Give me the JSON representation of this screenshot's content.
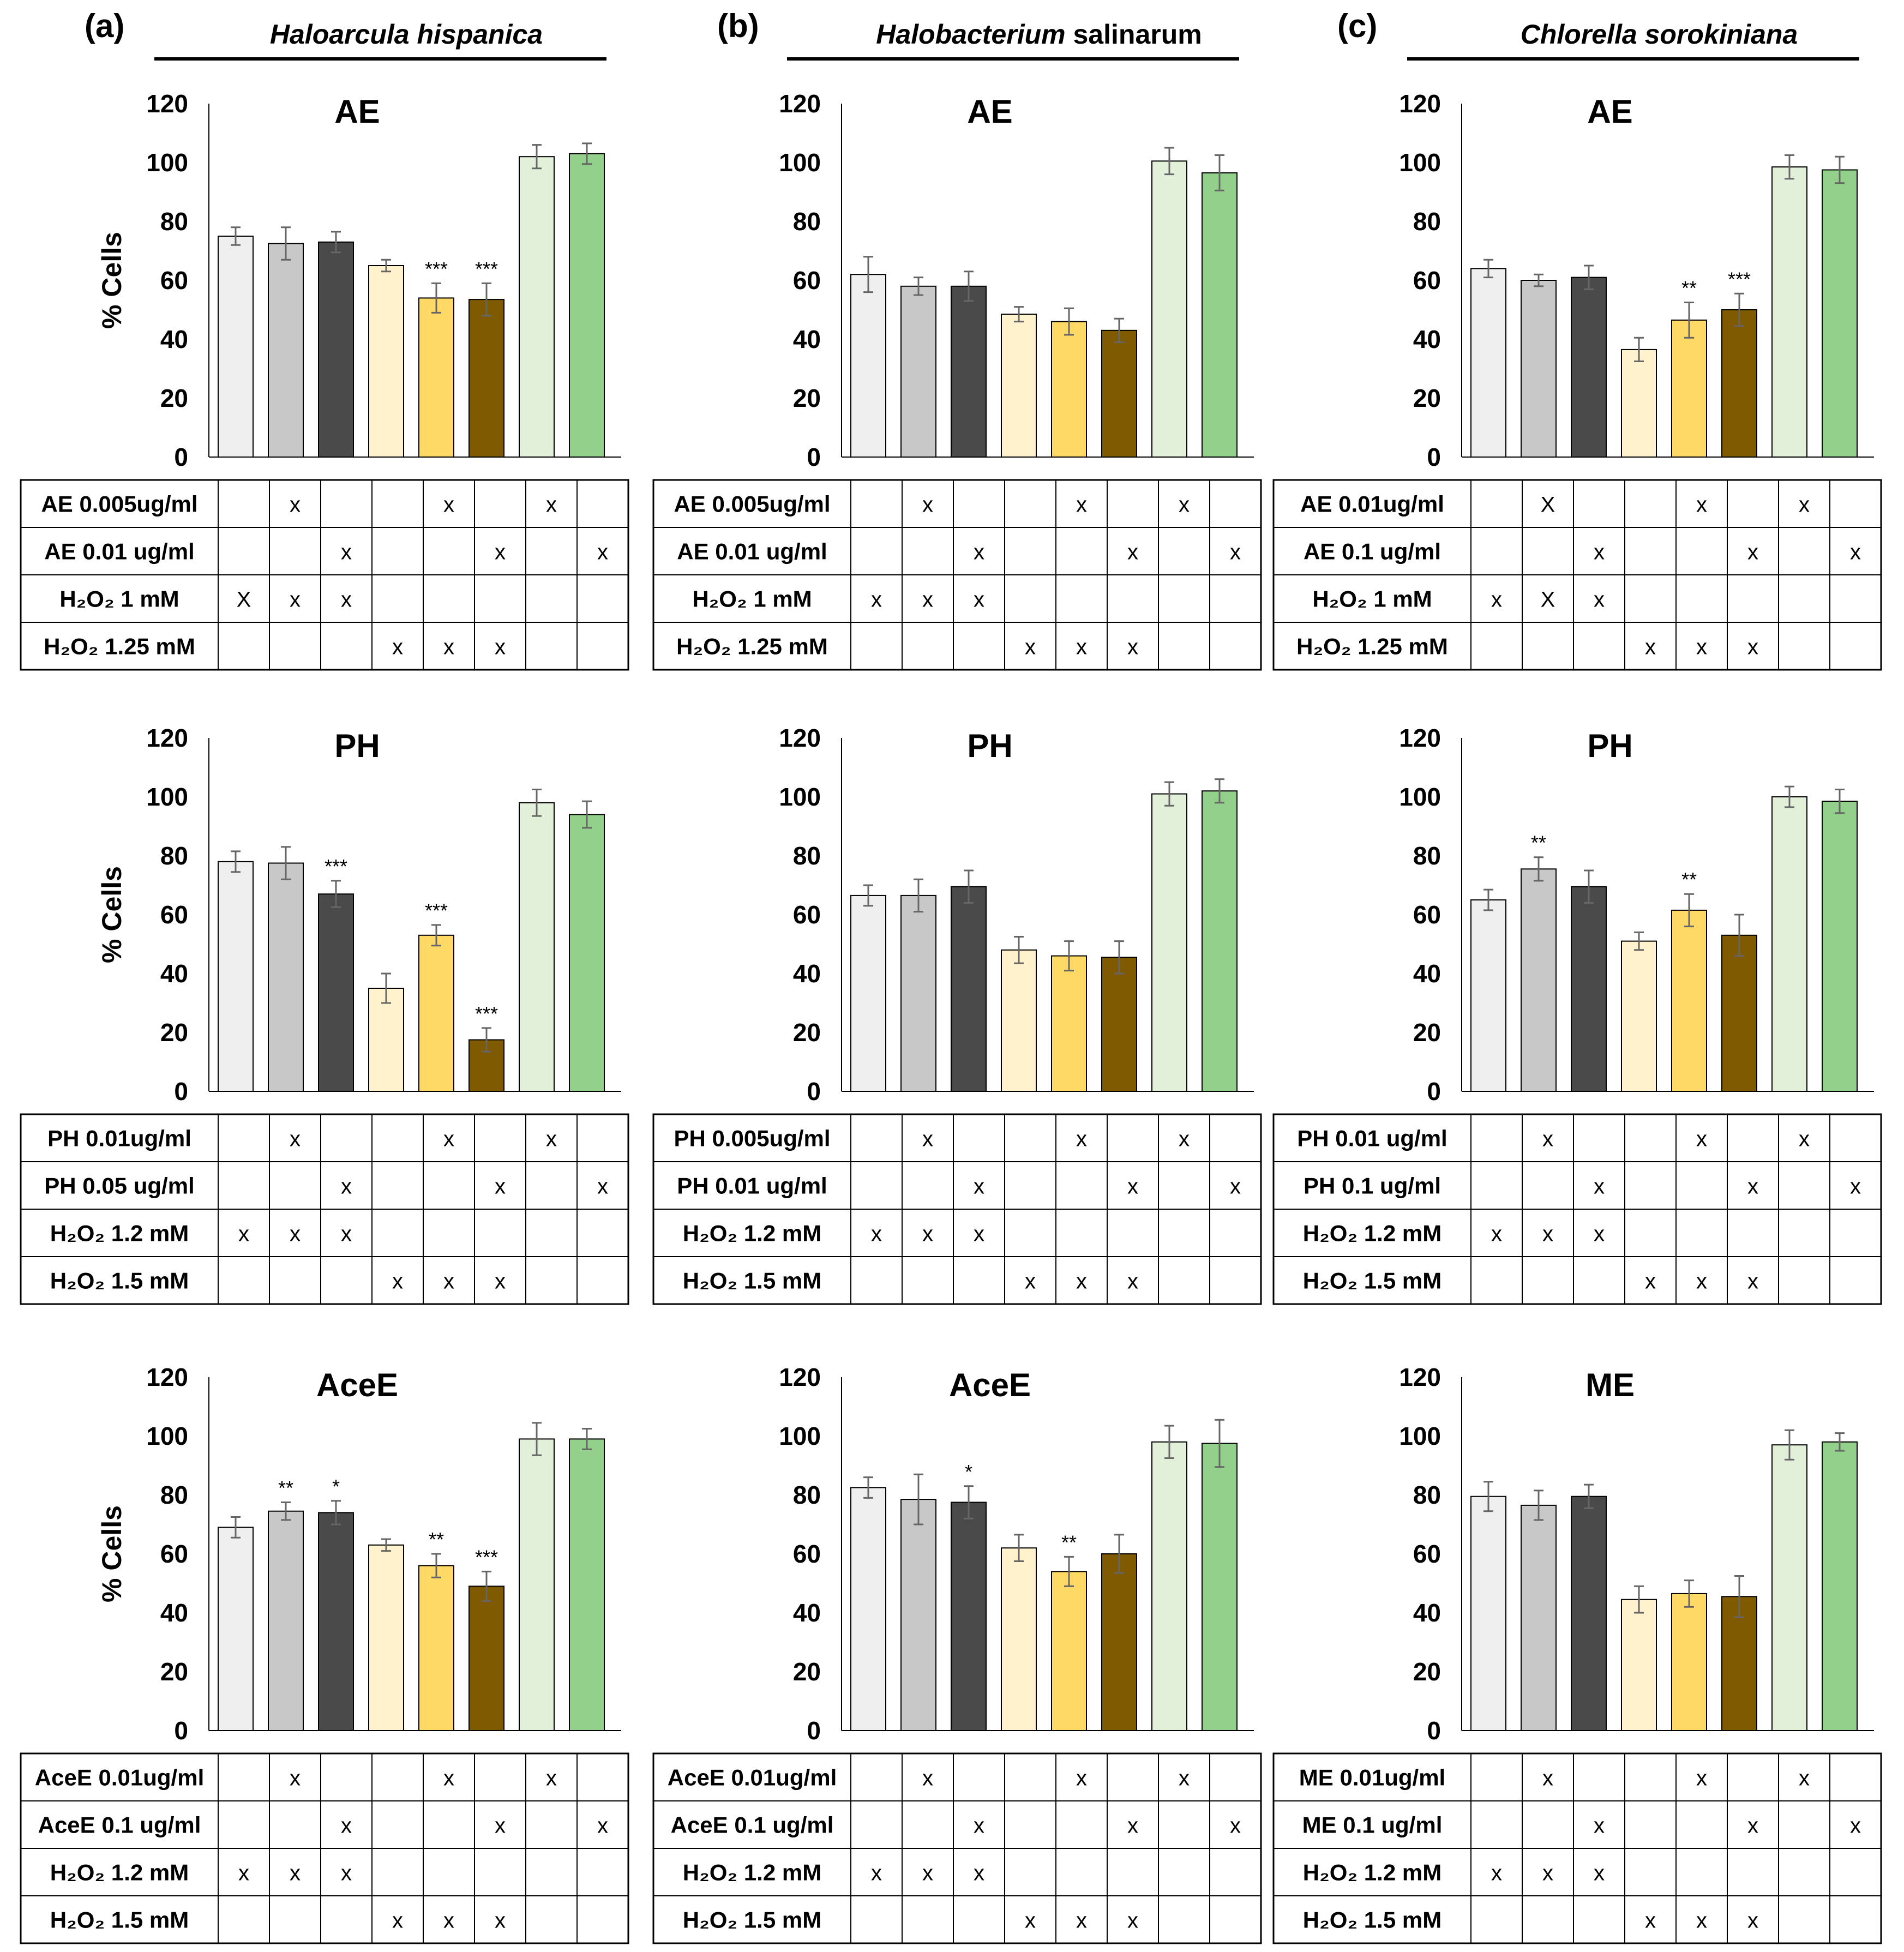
{
  "chart_data": {
    "columns": [
      {
        "label": "(a)",
        "organism": "Haloarcula hispanica",
        "organism_italic": "Haloarcula hispanica",
        "organism_plain": ""
      },
      {
        "label": "(b)",
        "organism": "Halobacterium salinarum",
        "organism_italic": "Halobacterium",
        "organism_plain": " salinarum"
      },
      {
        "label": "(c)",
        "organism": "Chlorella sorokiniana",
        "organism_italic": "Chlorella sorokiniana",
        "organism_plain": ""
      }
    ],
    "colors": [
      "#efefef",
      "#c8c8c8",
      "#4a4a4a",
      "#fff2cc",
      "#ffd966",
      "#805a00",
      "#e2f0d9",
      "#92d08b"
    ],
    "charts": [
      {
        "type": "bar",
        "title": "AE",
        "ylabel": "% Cells",
        "ylim": [
          0,
          120
        ],
        "yticks": [
          0,
          20,
          40,
          60,
          80,
          100,
          120
        ],
        "values": [
          75,
          72.5,
          73,
          65,
          54,
          53.5,
          102,
          103
        ],
        "errors": [
          3,
          5.5,
          3.5,
          2,
          5,
          5.5,
          4,
          3.5
        ],
        "annotations": [
          "",
          "",
          "",
          "",
          "***",
          "***",
          "",
          ""
        ],
        "table": [
          {
            "label": "AE 0.005ug/ml",
            "marks": [
              "",
              "x",
              "",
              "",
              "x",
              "",
              "x",
              ""
            ]
          },
          {
            "label": "AE 0.01 ug/ml",
            "marks": [
              "",
              "",
              "x",
              "",
              "",
              "x",
              "",
              "x"
            ]
          },
          {
            "label": "H₂O₂ 1 mM",
            "marks": [
              "X",
              "x",
              "x",
              "",
              "",
              "",
              "",
              ""
            ]
          },
          {
            "label": "H₂O₂ 1.25 mM",
            "marks": [
              "",
              "",
              "",
              "x",
              "x",
              "x",
              "",
              ""
            ]
          }
        ]
      },
      {
        "type": "bar",
        "title": "AE",
        "ylabel": "",
        "ylim": [
          0,
          120
        ],
        "yticks": [
          0,
          20,
          40,
          60,
          80,
          100,
          120
        ],
        "values": [
          62,
          58,
          58,
          48.5,
          46,
          43,
          100.5,
          96.5
        ],
        "errors": [
          6,
          3,
          5,
          2.5,
          4.5,
          4,
          4.5,
          6
        ],
        "annotations": [
          "",
          "",
          "",
          "",
          "",
          "",
          "",
          ""
        ],
        "table": [
          {
            "label": "AE 0.005ug/ml",
            "marks": [
              "",
              "x",
              "",
              "",
              "x",
              "",
              "x",
              ""
            ]
          },
          {
            "label": "AE 0.01 ug/ml",
            "marks": [
              "",
              "",
              "x",
              "",
              "",
              "x",
              "",
              "x"
            ]
          },
          {
            "label": "H₂O₂ 1 mM",
            "marks": [
              "x",
              "x",
              "x",
              "",
              "",
              "",
              "",
              ""
            ]
          },
          {
            "label": "H₂O₂ 1.25 mM",
            "marks": [
              "",
              "",
              "",
              "x",
              "x",
              "x",
              "",
              ""
            ]
          }
        ]
      },
      {
        "type": "bar",
        "title": "AE",
        "ylabel": "",
        "ylim": [
          0,
          120
        ],
        "yticks": [
          0,
          20,
          40,
          60,
          80,
          100,
          120
        ],
        "values": [
          64,
          60,
          61,
          36.5,
          46.5,
          50,
          98.5,
          97.5
        ],
        "errors": [
          3,
          2,
          4,
          4,
          6,
          5.5,
          4,
          4.5
        ],
        "annotations": [
          "",
          "",
          "",
          "",
          "**",
          "***",
          "",
          ""
        ],
        "table": [
          {
            "label": "AE 0.01ug/ml",
            "marks": [
              "",
              "X",
              "",
              "",
              "x",
              "",
              "x",
              ""
            ]
          },
          {
            "label": "AE 0.1 ug/ml",
            "marks": [
              "",
              "",
              "x",
              "",
              "",
              "x",
              "",
              "x"
            ]
          },
          {
            "label": "H₂O₂ 1 mM",
            "marks": [
              "x",
              "X",
              "x",
              "",
              "",
              "",
              "",
              ""
            ]
          },
          {
            "label": "H₂O₂ 1.25 mM",
            "marks": [
              "",
              "",
              "",
              "x",
              "x",
              "x",
              "",
              ""
            ]
          }
        ]
      },
      {
        "type": "bar",
        "title": "PH",
        "ylabel": "% Cells",
        "ylim": [
          0,
          120
        ],
        "yticks": [
          0,
          20,
          40,
          60,
          80,
          100,
          120
        ],
        "values": [
          78,
          77.5,
          67,
          35,
          53,
          17.5,
          98,
          94
        ],
        "errors": [
          3.5,
          5.5,
          4.5,
          5,
          3.5,
          4,
          4.5,
          4.5
        ],
        "annotations": [
          "",
          "",
          "***",
          "",
          "***",
          "***",
          "",
          ""
        ],
        "table": [
          {
            "label": "PH 0.01ug/ml",
            "marks": [
              "",
              "x",
              "",
              "",
              "x",
              "",
              "x",
              ""
            ]
          },
          {
            "label": "PH 0.05 ug/ml",
            "marks": [
              "",
              "",
              "x",
              "",
              "",
              "x",
              "",
              "x"
            ]
          },
          {
            "label": "H₂O₂ 1.2 mM",
            "marks": [
              "x",
              "x",
              "x",
              "",
              "",
              "",
              "",
              ""
            ]
          },
          {
            "label": "H₂O₂ 1.5 mM",
            "marks": [
              "",
              "",
              "",
              "x",
              "x",
              "x",
              "",
              ""
            ]
          }
        ]
      },
      {
        "type": "bar",
        "title": "PH",
        "ylabel": "",
        "ylim": [
          0,
          120
        ],
        "yticks": [
          0,
          20,
          40,
          60,
          80,
          100,
          120
        ],
        "values": [
          66.5,
          66.5,
          69.5,
          48,
          46,
          45.5,
          101,
          102
        ],
        "errors": [
          3.5,
          5.5,
          5.5,
          4.5,
          5,
          5.5,
          4,
          4
        ],
        "annotations": [
          "",
          "",
          "",
          "",
          "",
          "",
          "",
          ""
        ],
        "table": [
          {
            "label": "PH 0.005ug/ml",
            "marks": [
              "",
              "x",
              "",
              "",
              "x",
              "",
              "x",
              ""
            ]
          },
          {
            "label": "PH 0.01 ug/ml",
            "marks": [
              "",
              "",
              "x",
              "",
              "",
              "x",
              "",
              "x"
            ]
          },
          {
            "label": "H₂O₂ 1.2 mM",
            "marks": [
              "x",
              "x",
              "x",
              "",
              "",
              "",
              "",
              ""
            ]
          },
          {
            "label": "H₂O₂ 1.5 mM",
            "marks": [
              "",
              "",
              "",
              "x",
              "x",
              "x",
              "",
              ""
            ]
          }
        ]
      },
      {
        "type": "bar",
        "title": "PH",
        "ylabel": "",
        "ylim": [
          0,
          120
        ],
        "yticks": [
          0,
          20,
          40,
          60,
          80,
          100,
          120
        ],
        "values": [
          65,
          75.5,
          69.5,
          51,
          61.5,
          53,
          100,
          98.5
        ],
        "errors": [
          3.5,
          4,
          5.5,
          3,
          5.5,
          7,
          3.5,
          4
        ],
        "annotations": [
          "",
          "**",
          "",
          "",
          "**",
          "",
          "",
          ""
        ],
        "table": [
          {
            "label": "PH 0.01 ug/ml",
            "marks": [
              "",
              "x",
              "",
              "",
              "x",
              "",
              "x",
              ""
            ]
          },
          {
            "label": "PH 0.1 ug/ml",
            "marks": [
              "",
              "",
              "x",
              "",
              "",
              "x",
              "",
              "x"
            ]
          },
          {
            "label": "H₂O₂ 1.2 mM",
            "marks": [
              "x",
              "x",
              "x",
              "",
              "",
              "",
              "",
              ""
            ]
          },
          {
            "label": "H₂O₂ 1.5 mM",
            "marks": [
              "",
              "",
              "",
              "x",
              "x",
              "x",
              "",
              ""
            ]
          }
        ]
      },
      {
        "type": "bar",
        "title": "AceE",
        "ylabel": "% Cells",
        "ylim": [
          0,
          120
        ],
        "yticks": [
          0,
          20,
          40,
          60,
          80,
          100,
          120
        ],
        "values": [
          69,
          74.5,
          74,
          63,
          56,
          49,
          99,
          99
        ],
        "errors": [
          3.5,
          3,
          4,
          2,
          4,
          5,
          5.5,
          3.5
        ],
        "annotations": [
          "",
          "**",
          "*",
          "",
          "**",
          "***",
          "",
          ""
        ],
        "table": [
          {
            "label": "AceE 0.01ug/ml",
            "marks": [
              "",
              "x",
              "",
              "",
              "x",
              "",
              "x",
              ""
            ]
          },
          {
            "label": "AceE 0.1 ug/ml",
            "marks": [
              "",
              "",
              "x",
              "",
              "",
              "x",
              "",
              "x"
            ]
          },
          {
            "label": "H₂O₂ 1.2 mM",
            "marks": [
              "x",
              "x",
              "x",
              "",
              "",
              "",
              "",
              ""
            ]
          },
          {
            "label": "H₂O₂ 1.5 mM",
            "marks": [
              "",
              "",
              "",
              "x",
              "x",
              "x",
              "",
              ""
            ]
          }
        ]
      },
      {
        "type": "bar",
        "title": "AceE",
        "ylabel": "",
        "ylim": [
          0,
          120
        ],
        "yticks": [
          0,
          20,
          40,
          60,
          80,
          100,
          120
        ],
        "values": [
          82.5,
          78.5,
          77.5,
          62,
          54,
          60,
          98,
          97.5
        ],
        "errors": [
          3.5,
          8.5,
          5.5,
          4.5,
          5,
          6.5,
          5.5,
          8
        ],
        "annotations": [
          "",
          "",
          "*",
          "",
          "**",
          "",
          "",
          ""
        ],
        "table": [
          {
            "label": "AceE 0.01ug/ml",
            "marks": [
              "",
              "x",
              "",
              "",
              "x",
              "",
              "x",
              ""
            ]
          },
          {
            "label": "AceE 0.1 ug/ml",
            "marks": [
              "",
              "",
              "x",
              "",
              "",
              "x",
              "",
              "x"
            ]
          },
          {
            "label": "H₂O₂ 1.2 mM",
            "marks": [
              "x",
              "x",
              "x",
              "",
              "",
              "",
              "",
              ""
            ]
          },
          {
            "label": "H₂O₂ 1.5 mM",
            "marks": [
              "",
              "",
              "",
              "x",
              "x",
              "x",
              "",
              ""
            ]
          }
        ]
      },
      {
        "type": "bar",
        "title": "ME",
        "ylabel": "",
        "ylim": [
          0,
          120
        ],
        "yticks": [
          0,
          20,
          40,
          60,
          80,
          100,
          120
        ],
        "values": [
          79.5,
          76.5,
          79.5,
          44.5,
          46.5,
          45.5,
          97,
          98
        ],
        "errors": [
          5,
          5,
          4,
          4.5,
          4.5,
          7,
          5,
          3
        ],
        "annotations": [
          "",
          "",
          "",
          "",
          "",
          "",
          "",
          ""
        ],
        "table": [
          {
            "label": "ME 0.01ug/ml",
            "marks": [
              "",
              "x",
              "",
              "",
              "x",
              "",
              "x",
              ""
            ]
          },
          {
            "label": "ME 0.1 ug/ml",
            "marks": [
              "",
              "",
              "x",
              "",
              "",
              "x",
              "",
              "x"
            ]
          },
          {
            "label": "H₂O₂ 1.2 mM",
            "marks": [
              "x",
              "x",
              "x",
              "",
              "",
              "",
              "",
              ""
            ]
          },
          {
            "label": "H₂O₂ 1.5 mM",
            "marks": [
              "",
              "",
              "",
              "x",
              "x",
              "x",
              "",
              ""
            ]
          }
        ]
      }
    ]
  }
}
